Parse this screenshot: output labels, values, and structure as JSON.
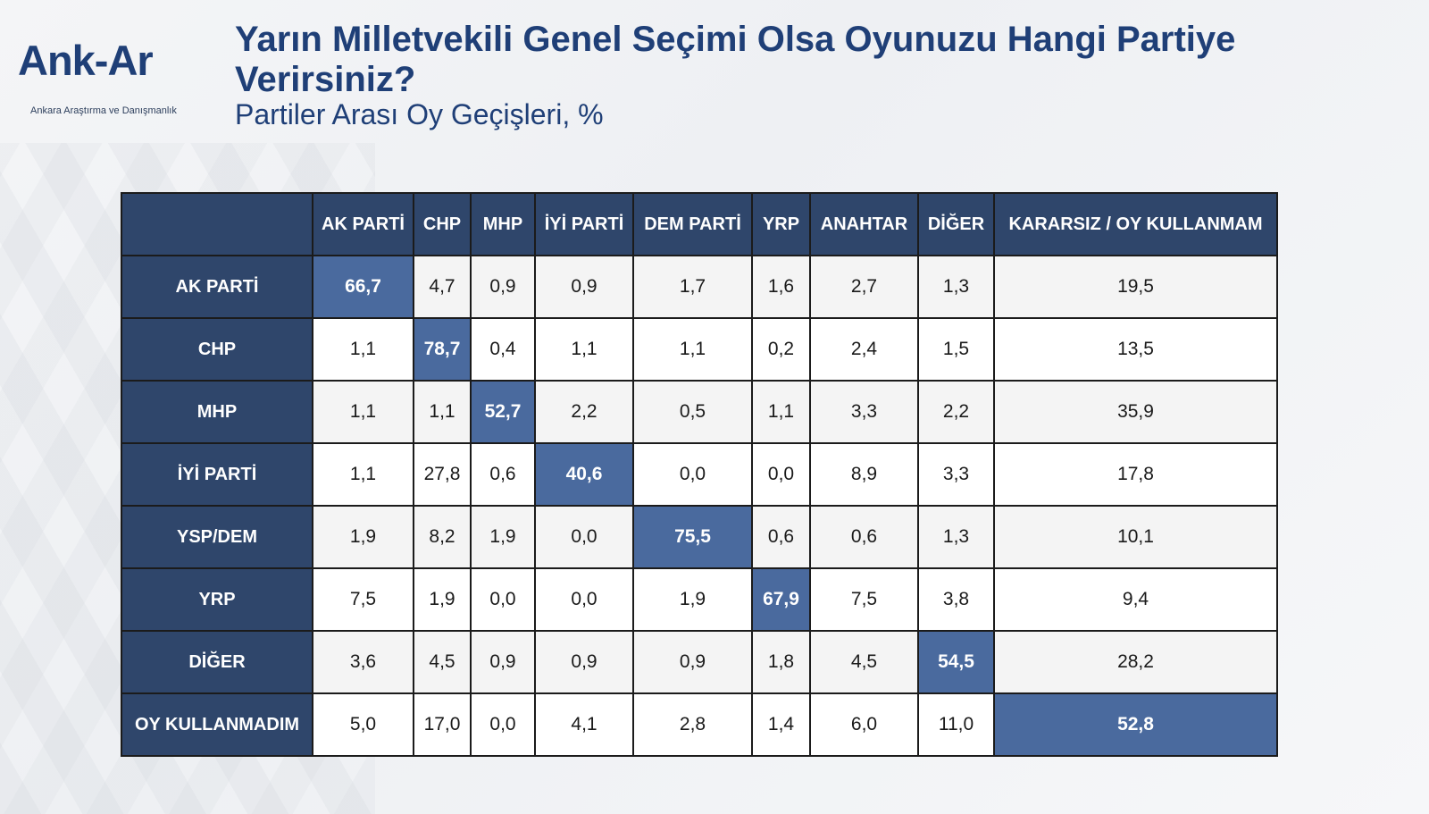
{
  "logo": {
    "mark": "Ank-Ar",
    "subtitle": "Ankara Araştırma ve Danışmanlık"
  },
  "header": {
    "title": "Yarın Milletvekili Genel Seçimi Olsa Oyunuzu Hangi Partiye Verirsiniz?",
    "subtitle": "Partiler Arası Oy Geçişleri, %"
  },
  "chart_data": {
    "type": "table",
    "title": "Yarın Milletvekili Genel Seçimi Olsa Oyunuzu Hangi Partiye Verirsiniz?",
    "subtitle": "Partiler Arası Oy Geçişleri, %",
    "columns": [
      "AK PARTİ",
      "CHP",
      "MHP",
      "İYİ PARTİ",
      "DEM PARTİ",
      "YRP",
      "ANAHTAR",
      "DİĞER",
      "KARARSIZ / OY KULLANMAM"
    ],
    "rows": [
      {
        "label": "AK PARTİ",
        "values": [
          "66,7",
          "4,7",
          "0,9",
          "0,9",
          "1,7",
          "1,6",
          "2,7",
          "1,3",
          "19,5"
        ],
        "highlight": 0
      },
      {
        "label": "CHP",
        "values": [
          "1,1",
          "78,7",
          "0,4",
          "1,1",
          "1,1",
          "0,2",
          "2,4",
          "1,5",
          "13,5"
        ],
        "highlight": 1
      },
      {
        "label": "MHP",
        "values": [
          "1,1",
          "1,1",
          "52,7",
          "2,2",
          "0,5",
          "1,1",
          "3,3",
          "2,2",
          "35,9"
        ],
        "highlight": 2
      },
      {
        "label": "İYİ PARTİ",
        "values": [
          "1,1",
          "27,8",
          "0,6",
          "40,6",
          "0,0",
          "0,0",
          "8,9",
          "3,3",
          "17,8"
        ],
        "highlight": 3
      },
      {
        "label": "YSP/DEM",
        "values": [
          "1,9",
          "8,2",
          "1,9",
          "0,0",
          "75,5",
          "0,6",
          "0,6",
          "1,3",
          "10,1"
        ],
        "highlight": 4
      },
      {
        "label": "YRP",
        "values": [
          "7,5",
          "1,9",
          "0,0",
          "0,0",
          "1,9",
          "67,9",
          "7,5",
          "3,8",
          "9,4"
        ],
        "highlight": 5
      },
      {
        "label": "DİĞER",
        "values": [
          "3,6",
          "4,5",
          "0,9",
          "0,9",
          "0,9",
          "1,8",
          "4,5",
          "54,5",
          "28,2"
        ],
        "highlight": 7
      },
      {
        "label": "OY KULLANMADIM",
        "values": [
          "5,0",
          "17,0",
          "0,0",
          "4,1",
          "2,8",
          "1,4",
          "6,0",
          "11,0",
          "52,8"
        ],
        "highlight": 8
      }
    ],
    "colors": {
      "header": "#2f466b",
      "highlight": "#4a6a9e",
      "text_title": "#1f3f77"
    }
  }
}
